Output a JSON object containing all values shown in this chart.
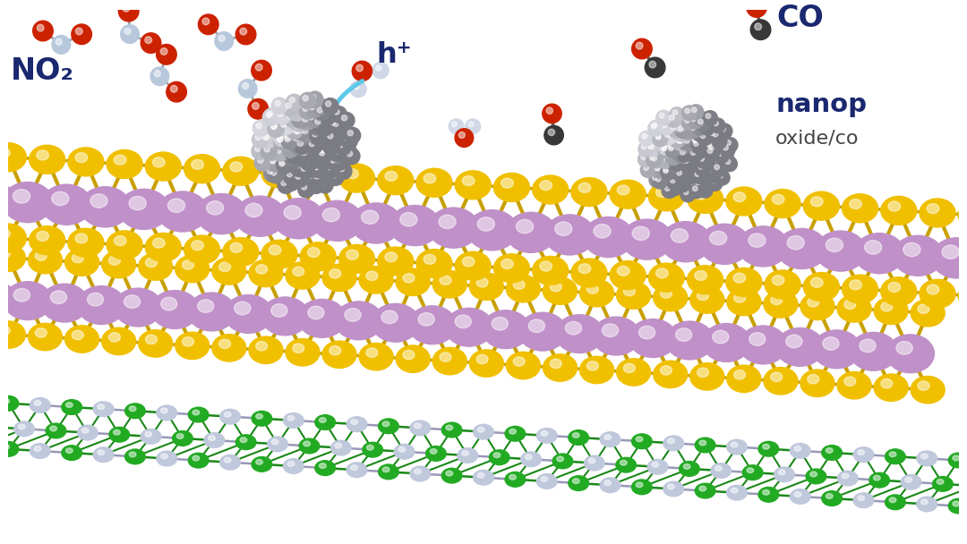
{
  "bg_color": "#ffffff",
  "no2_label": "NO₂",
  "co_label": "CO",
  "hplus_label": "h⁺",
  "nanop_label": "nanop",
  "oxide_label": "oxide/co",
  "arrow_color": "#5bc8e8",
  "label_color": "#1a2870",
  "no2_color_N": "#b8c8dc",
  "no2_color_O": "#cc2200",
  "co_color_C": "#383838",
  "co_color_O": "#cc2200",
  "yellow_atom": "#f0c000",
  "purple_atom": "#c090c8",
  "green_atom": "#22aa22",
  "light_atom": "#c0c8dc",
  "bond_yellow": "#c8a000",
  "bond_purple": "#c090c0",
  "bond_green": "#1a8818",
  "bond_light": "#9898b8",
  "nano_mid": "#808080",
  "nano_light_hi": "#d8d8d8",
  "water_O": "#cc2200",
  "water_H": "#d0d8e8"
}
